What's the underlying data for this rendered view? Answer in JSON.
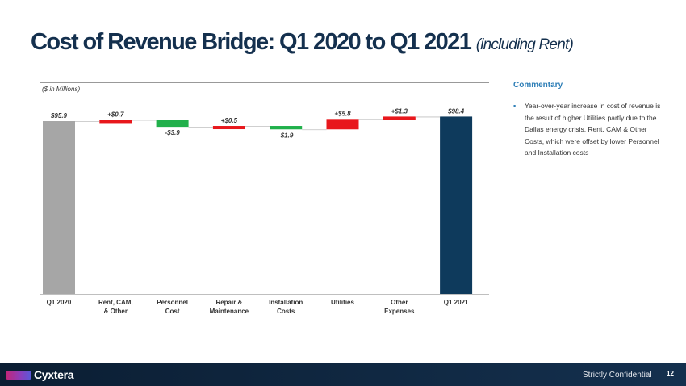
{
  "header": {
    "title": "Cost of Revenue Bridge:  Q1 2020 to Q1 2021",
    "subtitle": "(including Rent)"
  },
  "commentary": {
    "heading": "Commentary",
    "bullet_symbol": "▪",
    "text": "Year-over-year increase in cost of revenue is the result of higher Utilities partly due to the Dallas energy crisis, Rent, CAM & Other Costs, which were offset by lower Personnel and Installation costs"
  },
  "footer": {
    "logo_text": "Cyxtera",
    "confidential": "Strictly Confidential",
    "page_number": "12"
  },
  "chart_data": {
    "type": "bar",
    "subtype": "waterfall",
    "units_note": "($ in Millions)",
    "categories": [
      [
        "Q1 2020"
      ],
      [
        "Rent, CAM,",
        "& Other"
      ],
      [
        "Personnel",
        "Cost"
      ],
      [
        "Repair &",
        "Maintenance"
      ],
      [
        "Installation",
        "Costs"
      ],
      [
        "Utilities"
      ],
      [
        "Other",
        "Expenses"
      ],
      [
        "Q1 2021"
      ]
    ],
    "values": [
      95.9,
      0.7,
      -3.9,
      0.5,
      -1.9,
      5.8,
      1.3,
      98.4
    ],
    "kinds": [
      "total",
      "delta",
      "delta",
      "delta",
      "delta",
      "delta",
      "delta",
      "total"
    ],
    "labels": [
      "$95.9",
      "+$0.7",
      "-$3.9",
      "+$0.5",
      "-$1.9",
      "+$5.8",
      "+$1.3",
      "$98.4"
    ],
    "ylim": [
      0,
      100
    ],
    "colors": {
      "start_total": "#a6a6a6",
      "end_total": "#0e3a5c",
      "increase": "#e8171c",
      "decrease": "#21b04b"
    }
  }
}
